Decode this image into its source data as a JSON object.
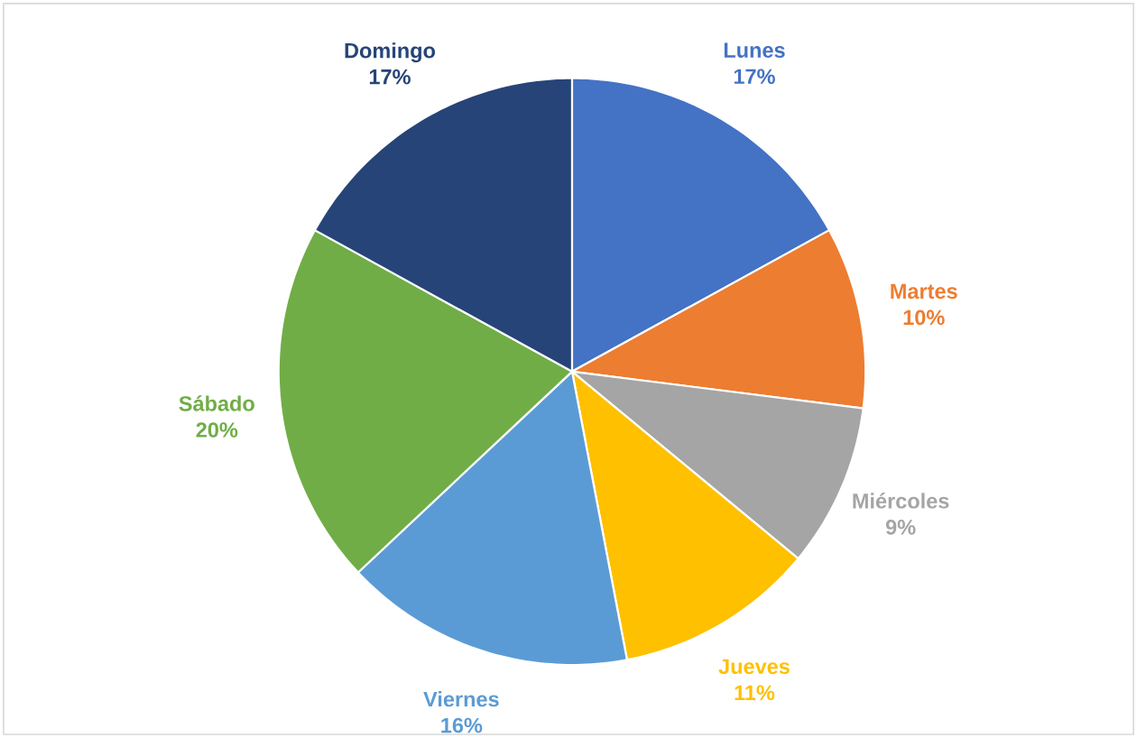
{
  "chart_data": {
    "type": "pie",
    "categories": [
      "Lunes",
      "Martes",
      "Miércoles",
      "Jueves",
      "Viernes",
      "Sábado",
      "Domingo"
    ],
    "values": [
      17,
      10,
      9,
      11,
      16,
      20,
      17
    ],
    "colors": [
      "#4472c4",
      "#ed7d31",
      "#a5a5a5",
      "#ffc000",
      "#5b9bd5",
      "#70ad47",
      "#264478"
    ],
    "value_labels": [
      "17%",
      "10%",
      "9%",
      "11%",
      "16%",
      "20%",
      "17%"
    ]
  }
}
